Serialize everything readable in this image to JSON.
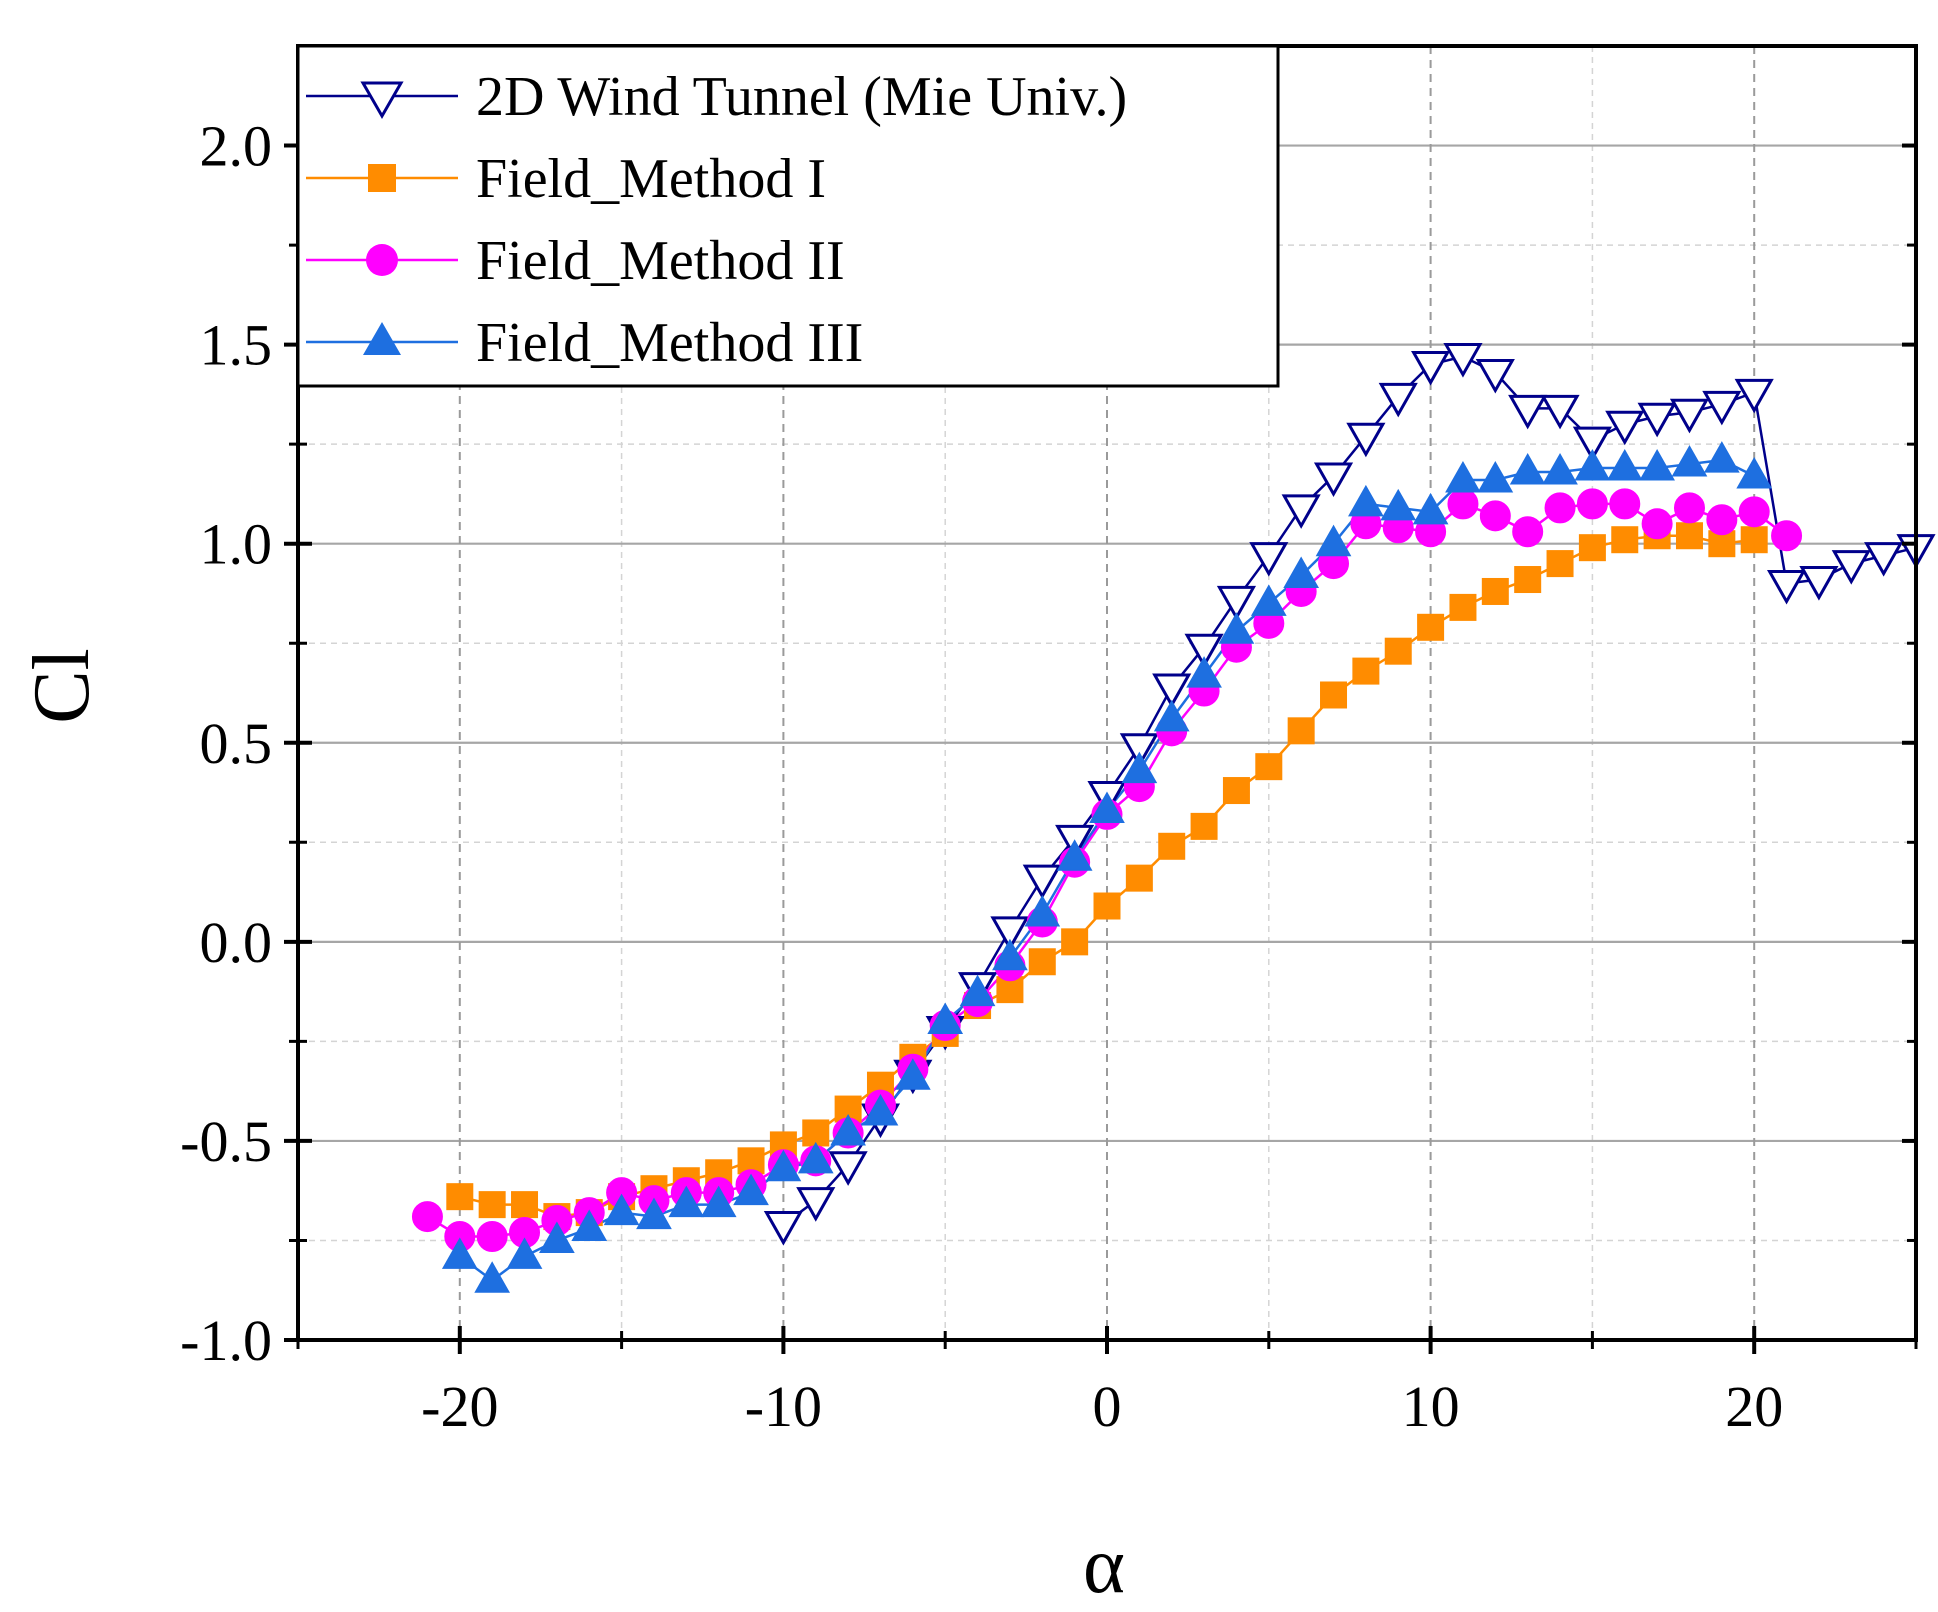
{
  "chart_data": {
    "type": "line",
    "title": "",
    "xlabel": "α",
    "ylabel": "Cl",
    "xlim": [
      -25,
      25
    ],
    "ylim": [
      -1.0,
      2.25
    ],
    "xticks": [
      -20,
      -10,
      0,
      10,
      20
    ],
    "yticks": [
      -1.0,
      -0.5,
      0.0,
      0.5,
      1.0,
      1.5,
      2.0
    ],
    "xtick_labels": [
      "-20",
      "-10",
      "0",
      "10",
      "20"
    ],
    "ytick_labels": [
      "-1.0",
      "-0.5",
      "0.0",
      "0.5",
      "1.0",
      "1.5",
      "2.0"
    ],
    "grid": true,
    "legend_position": "top-left",
    "series": [
      {
        "name": "2D Wind Tunnel (Mie Univ.)",
        "color": "#00008B",
        "marker": "triangle-down-open",
        "x": [
          -10,
          -9,
          -8,
          -7,
          -6,
          -5,
          -4,
          -3,
          -2,
          -1,
          0,
          1,
          2,
          3,
          4,
          5,
          6,
          7,
          8,
          9,
          10,
          11,
          12,
          13,
          14,
          15,
          16,
          17,
          18,
          19,
          20,
          21,
          22,
          23,
          24,
          25
        ],
        "y": [
          -0.71,
          -0.65,
          -0.56,
          -0.44,
          -0.33,
          -0.22,
          -0.11,
          0.03,
          0.16,
          0.26,
          0.37,
          0.49,
          0.64,
          0.74,
          0.86,
          0.97,
          1.09,
          1.17,
          1.27,
          1.37,
          1.45,
          1.47,
          1.43,
          1.34,
          1.34,
          1.26,
          1.3,
          1.32,
          1.33,
          1.35,
          1.38,
          0.9,
          0.91,
          0.95,
          0.97,
          0.99
        ]
      },
      {
        "name": "Field_Method I",
        "color": "#FF8C00",
        "marker": "square",
        "x": [
          -20,
          -19,
          -18,
          -17,
          -16,
          -15,
          -14,
          -13,
          -12,
          -11,
          -10,
          -9,
          -8,
          -7,
          -6,
          -5,
          -4,
          -3,
          -2,
          -1,
          0,
          1,
          2,
          3,
          4,
          5,
          6,
          7,
          8,
          9,
          10,
          11,
          12,
          13,
          14,
          15,
          16,
          17,
          18,
          19,
          20
        ],
        "y": [
          -0.64,
          -0.66,
          -0.66,
          -0.69,
          -0.68,
          -0.64,
          -0.62,
          -0.6,
          -0.58,
          -0.55,
          -0.51,
          -0.48,
          -0.42,
          -0.36,
          -0.29,
          -0.23,
          -0.16,
          -0.12,
          -0.05,
          0.0,
          0.09,
          0.16,
          0.24,
          0.29,
          0.38,
          0.44,
          0.53,
          0.62,
          0.68,
          0.73,
          0.79,
          0.84,
          0.88,
          0.91,
          0.95,
          0.99,
          1.01,
          1.02,
          1.02,
          1.0,
          1.01
        ]
      },
      {
        "name": "Field_Method II",
        "color": "#FF00FF",
        "marker": "circle",
        "x": [
          -21,
          -20,
          -19,
          -18,
          -17,
          -16,
          -15,
          -14,
          -13,
          -12,
          -11,
          -10,
          -9,
          -8,
          -7,
          -6,
          -5,
          -4,
          -3,
          -2,
          -1,
          0,
          1,
          2,
          3,
          4,
          5,
          6,
          7,
          8,
          9,
          10,
          11,
          12,
          13,
          14,
          15,
          16,
          17,
          18,
          19,
          20,
          21
        ],
        "y": [
          -0.69,
          -0.74,
          -0.74,
          -0.73,
          -0.7,
          -0.68,
          -0.63,
          -0.65,
          -0.63,
          -0.63,
          -0.61,
          -0.56,
          -0.55,
          -0.48,
          -0.41,
          -0.32,
          -0.21,
          -0.15,
          -0.06,
          0.05,
          0.2,
          0.32,
          0.39,
          0.53,
          0.63,
          0.74,
          0.8,
          0.88,
          0.95,
          1.05,
          1.04,
          1.03,
          1.1,
          1.07,
          1.03,
          1.09,
          1.1,
          1.1,
          1.05,
          1.09,
          1.06,
          1.08,
          1.02
        ]
      },
      {
        "name": "Field_Method III",
        "color": "#1E6FE0",
        "marker": "triangle-up",
        "x": [
          -20,
          -19,
          -18,
          -17,
          -16,
          -15,
          -14,
          -13,
          -12,
          -11,
          -10,
          -9,
          -8,
          -7,
          -6,
          -5,
          -4,
          -3,
          -2,
          -1,
          0,
          1,
          2,
          3,
          4,
          5,
          6,
          7,
          8,
          9,
          10,
          11,
          12,
          13,
          14,
          15,
          16,
          17,
          18,
          19,
          20
        ],
        "y": [
          -0.79,
          -0.85,
          -0.79,
          -0.75,
          -0.72,
          -0.68,
          -0.69,
          -0.66,
          -0.66,
          -0.63,
          -0.57,
          -0.55,
          -0.48,
          -0.43,
          -0.34,
          -0.2,
          -0.13,
          -0.04,
          0.07,
          0.21,
          0.33,
          0.43,
          0.56,
          0.67,
          0.78,
          0.85,
          0.92,
          1.0,
          1.1,
          1.09,
          1.08,
          1.16,
          1.16,
          1.18,
          1.18,
          1.19,
          1.19,
          1.19,
          1.2,
          1.21,
          1.17
        ]
      }
    ]
  }
}
